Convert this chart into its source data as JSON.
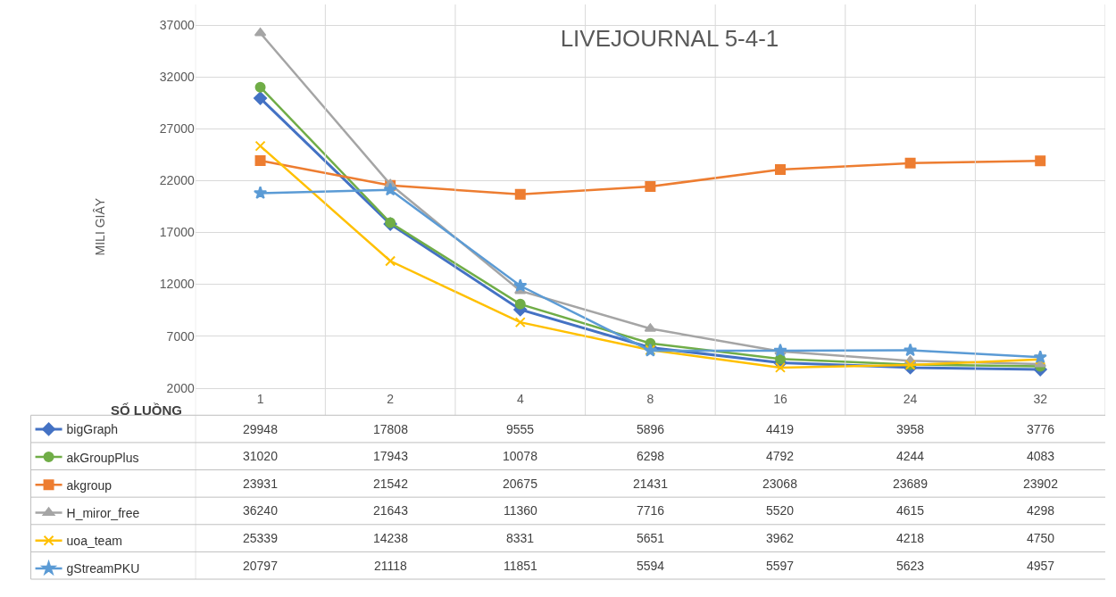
{
  "chart_data": {
    "type": "line",
    "title": "LIVEJOURNAL 5-4-1",
    "xlabel": "SỐ LUỒNG",
    "ylabel": "MILI GIÂY",
    "categories": [
      "1",
      "2",
      "4",
      "8",
      "16",
      "24",
      "32"
    ],
    "series": [
      {
        "name": "bigGraph",
        "color": "#4472c4",
        "marker": "diamond",
        "values": [
          29948,
          17808,
          9555,
          5896,
          4419,
          3958,
          3776
        ]
      },
      {
        "name": "akGroupPlus",
        "color": "#70ad47",
        "marker": "circle",
        "values": [
          31020,
          17943,
          10078,
          6298,
          4792,
          4244,
          4083
        ]
      },
      {
        "name": "akgroup",
        "color": "#ed7d31",
        "marker": "square",
        "values": [
          23931,
          21542,
          20675,
          21431,
          23068,
          23689,
          23902
        ]
      },
      {
        "name": "H_miror_free",
        "color": "#a5a5a5",
        "marker": "triangle",
        "values": [
          36240,
          21643,
          11360,
          7716,
          5520,
          4615,
          4298
        ]
      },
      {
        "name": "uoa_team",
        "color": "#ffc000",
        "marker": "cross",
        "values": [
          25339,
          14238,
          8331,
          5651,
          3962,
          4218,
          4750
        ]
      },
      {
        "name": "gStreamPKU",
        "color": "#5b9bd5",
        "marker": "star",
        "values": [
          20797,
          21118,
          11851,
          5594,
          5597,
          5623,
          4957
        ]
      }
    ],
    "ylim": [
      2000,
      39000
    ],
    "yticks": [
      2000,
      7000,
      12000,
      17000,
      22000,
      27000,
      32000,
      37000
    ],
    "grid": true,
    "legend": "bottom left",
    "data_labels": true
  }
}
